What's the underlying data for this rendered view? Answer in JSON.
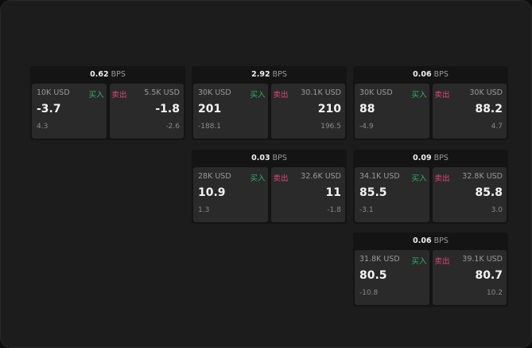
{
  "colors": {
    "buy": "#2fb366",
    "sell": "#e0457b",
    "background": "#1c1c1c",
    "card": "#2a2a2a"
  },
  "buy_label": "买入",
  "sell_label": "卖出",
  "unit": "BPS",
  "widgets": [
    {
      "spread": "0.62",
      "buy": {
        "qty": "10K USD",
        "price": "-3.7",
        "change": "4.3"
      },
      "sell": {
        "qty": "5.5K USD",
        "price": "-1.8",
        "change": "-2.6"
      }
    },
    {
      "spread": "2.92",
      "buy": {
        "qty": "30K USD",
        "price": "201",
        "change": "-188.1"
      },
      "sell": {
        "qty": "30.1K USD",
        "price": "210",
        "change": "196.5"
      }
    },
    {
      "spread": "0.06",
      "buy": {
        "qty": "30K USD",
        "price": "88",
        "change": "-4.9"
      },
      "sell": {
        "qty": "30K USD",
        "price": "88.2",
        "change": "4.7"
      }
    },
    {
      "spread": "0.03",
      "buy": {
        "qty": "28K USD",
        "price": "10.9",
        "change": "1.3"
      },
      "sell": {
        "qty": "32.6K USD",
        "price": "11",
        "change": "-1.8"
      }
    },
    {
      "spread": "0.09",
      "buy": {
        "qty": "34.1K USD",
        "price": "85.5",
        "change": "-3.1"
      },
      "sell": {
        "qty": "32.8K USD",
        "price": "85.8",
        "change": "3.0"
      }
    },
    {
      "spread": "0.06",
      "buy": {
        "qty": "31.8K USD",
        "price": "80.5",
        "change": "-10.8"
      },
      "sell": {
        "qty": "39.1K USD",
        "price": "80.7",
        "change": "10.2"
      }
    }
  ]
}
